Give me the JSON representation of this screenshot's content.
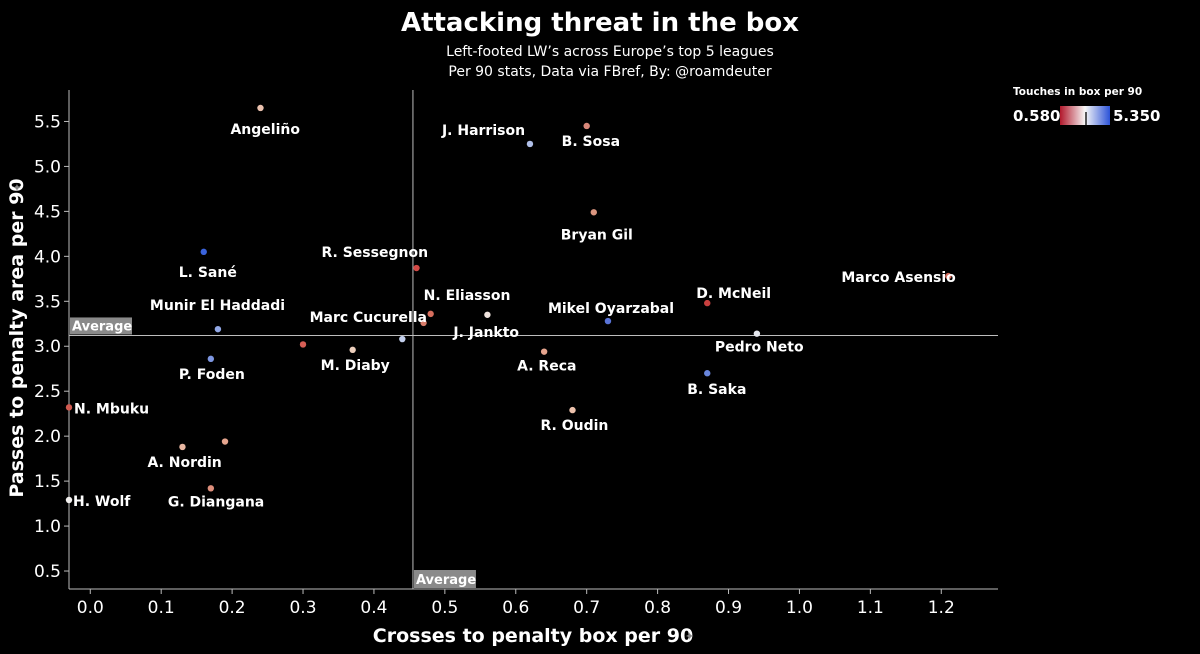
{
  "header": {
    "title": "Attacking threat in the box",
    "subtitle_1": "Left-footed LW’s across   Europe’s top 5 leagues",
    "subtitle_2": "Per 90 stats, Data via FBref, By: @roamdeuter"
  },
  "colorbar": {
    "title": "Touches in box per 90",
    "min_label": "0.580",
    "max_label": "5.350",
    "colors": [
      "#b2182b",
      "#f7f7f7",
      "#2c53d8"
    ]
  },
  "averages": {
    "x": 0.455,
    "y": 3.12,
    "label": "Average"
  },
  "chart_data": {
    "type": "scatter",
    "title": "Attacking threat in the box",
    "xlabel": "Crosses to penalty box per 90",
    "ylabel": "Passes to penalty area per 90",
    "xlim": [
      -0.03,
      1.28
    ],
    "ylim": [
      0.3,
      5.85
    ],
    "xticks": [
      "0.0",
      "0.1",
      "0.2",
      "0.3",
      "0.4",
      "0.5",
      "0.6",
      "0.7",
      "0.8",
      "0.9",
      "1.0",
      "1.1",
      "1.2"
    ],
    "yticks": [
      "0.5",
      "1.0",
      "1.5",
      "2.0",
      "2.5",
      "3.0",
      "3.5",
      "4.0",
      "4.5",
      "5.0",
      "5.5"
    ],
    "grid": false,
    "colorbar_label": "Touches in box per 90",
    "points": [
      {
        "label": "Angeliño",
        "x": 0.24,
        "y": 5.65,
        "color": "#ebc2af"
      },
      {
        "label": "J. Harrison",
        "x": 0.62,
        "y": 5.25,
        "color": "#b0bfe8"
      },
      {
        "label": "B. Sosa",
        "x": 0.7,
        "y": 5.45,
        "color": "#d9877a"
      },
      {
        "label": "Bryan Gil",
        "x": 0.71,
        "y": 4.49,
        "color": "#db9680"
      },
      {
        "label": "L. Sané",
        "x": 0.16,
        "y": 4.05,
        "color": "#3a63dc"
      },
      {
        "label": "R. Sessegnon",
        "x": 0.46,
        "y": 3.87,
        "color": "#d34a46"
      },
      {
        "label": "Marco Asensio",
        "x": 1.21,
        "y": 3.78,
        "color": "#d46a5c"
      },
      {
        "label": "D. McNeil",
        "x": 0.87,
        "y": 3.48,
        "color": "#c9403f"
      },
      {
        "label": "N. Eliasson",
        "x": 0.48,
        "y": 3.36,
        "color": "#d66e5d"
      },
      {
        "label": "Mikel Oyarzabal",
        "x": 0.73,
        "y": 3.28,
        "color": "#5a74d8"
      },
      {
        "label": "J. Jankto",
        "x": 0.56,
        "y": 3.35,
        "color": "#f0e4de"
      },
      {
        "label": "Marc Cucurella",
        "x": 0.47,
        "y": 3.26,
        "color": "#d97c6a"
      },
      {
        "label": "Munir El Haddadi",
        "x": 0.18,
        "y": 3.19,
        "color": "#92a8e6"
      },
      {
        "label": "Pedro Neto",
        "x": 0.94,
        "y": 3.14,
        "color": "#e5e7ef"
      },
      {
        "label": "",
        "x": 0.44,
        "y": 3.08,
        "color": "#c3cfec"
      },
      {
        "label": "",
        "x": 0.3,
        "y": 3.02,
        "color": "#d65e55"
      },
      {
        "label": "M. Diaby",
        "x": 0.37,
        "y": 2.96,
        "color": "#edcfbd"
      },
      {
        "label": "A. Reca",
        "x": 0.64,
        "y": 2.94,
        "color": "#e6a48e"
      },
      {
        "label": "P. Foden",
        "x": 0.17,
        "y": 2.86,
        "color": "#7e97e2"
      },
      {
        "label": "B. Saka",
        "x": 0.87,
        "y": 2.7,
        "color": "#6885dc"
      },
      {
        "label": "N. Mbuku",
        "x": -0.03,
        "y": 2.32,
        "color": "#d05a50"
      },
      {
        "label": "R. Oudin",
        "x": 0.68,
        "y": 2.29,
        "color": "#edc2ad"
      },
      {
        "label": "",
        "x": 0.19,
        "y": 1.94,
        "color": "#e6a58e"
      },
      {
        "label": "A. Nordin",
        "x": 0.13,
        "y": 1.88,
        "color": "#e9b7a2"
      },
      {
        "label": "G. Diangana",
        "x": 0.17,
        "y": 1.42,
        "color": "#de8f7c"
      },
      {
        "label": "H. Wolf",
        "x": -0.03,
        "y": 1.29,
        "color": "#f2f0ef"
      }
    ]
  }
}
